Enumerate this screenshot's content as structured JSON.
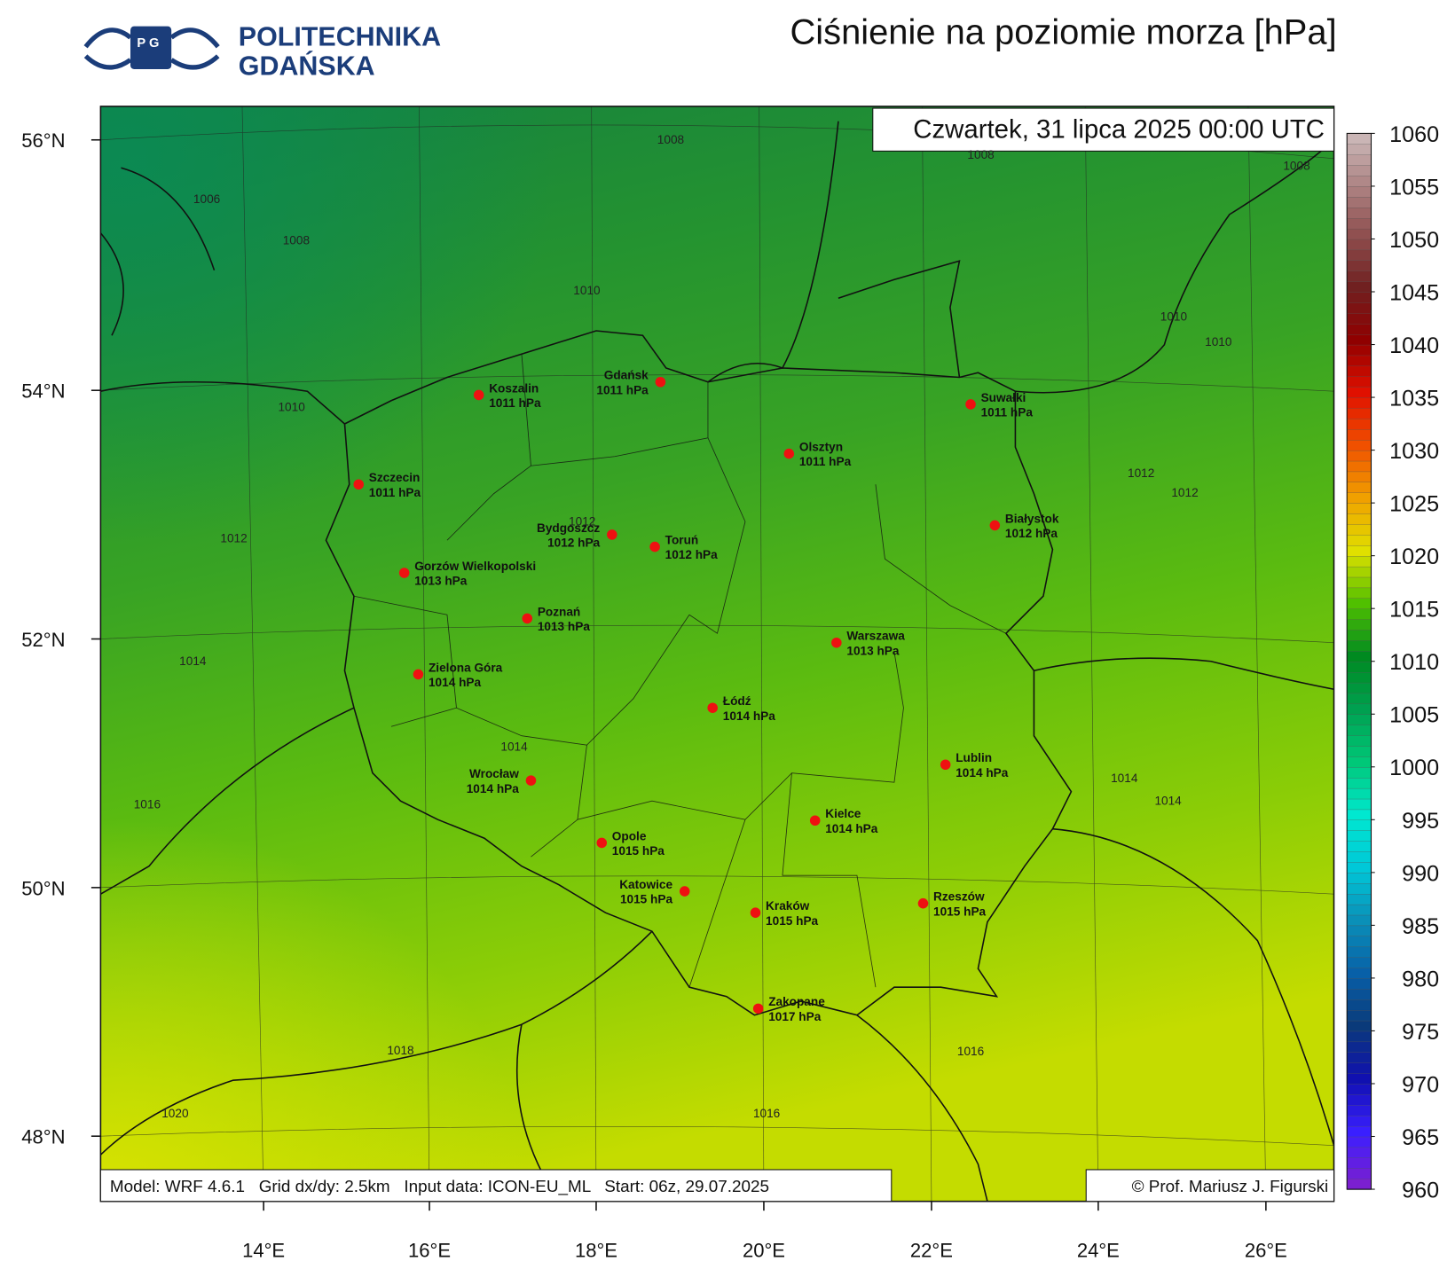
{
  "header": {
    "logo_line1": "POLITECHNIKA",
    "logo_line2": "GDAŃSKA",
    "title": "Ciśnienie na poziomie morza [hPa]"
  },
  "map": {
    "datetime": "Czwartek, 31 lipca 2025 00:00 UTC",
    "footer": "Model: WRF 4.6.1   Grid dx/dy: 2.5km   Input data: ICON-EU_ML   Start: 06z, 29.07.2025",
    "credit": "© Prof. Mariusz J. Figurski",
    "lat_labels": [
      "56°N",
      "54°N",
      "52°N",
      "50°N",
      "48°N"
    ],
    "lon_labels": [
      "14°E",
      "16°E",
      "18°E",
      "20°E",
      "22°E",
      "24°E",
      "26°E"
    ],
    "cities": [
      {
        "name": "Koszalin",
        "label": "1011 hPa"
      },
      {
        "name": "Gdańsk",
        "label": "1011 hPa"
      },
      {
        "name": "Suwałki",
        "label": "1011 hPa"
      },
      {
        "name": "Olsztyn",
        "label": "1011 hPa"
      },
      {
        "name": "Szczecin",
        "label": "1011 hPa"
      },
      {
        "name": "Bydgoszcz",
        "label": "1012 hPa"
      },
      {
        "name": "Toruń",
        "label": "1012 hPa"
      },
      {
        "name": "Białystok",
        "label": "1012 hPa"
      },
      {
        "name": "Gorzów Wielkopolski",
        "label": "1013 hPa"
      },
      {
        "name": "Poznań",
        "label": "1013 hPa"
      },
      {
        "name": "Warszawa",
        "label": "1013 hPa"
      },
      {
        "name": "Zielona Góra",
        "label": "1014 hPa"
      },
      {
        "name": "Łódź",
        "label": "1014 hPa"
      },
      {
        "name": "Lublin",
        "label": "1014 hPa"
      },
      {
        "name": "Wrocław",
        "label": "1014 hPa"
      },
      {
        "name": "Kielce",
        "label": "1014 hPa"
      },
      {
        "name": "Opole",
        "label": "1015 hPa"
      },
      {
        "name": "Katowice",
        "label": "1015 hPa"
      },
      {
        "name": "Kraków",
        "label": "1015 hPa"
      },
      {
        "name": "Rzeszów",
        "label": "1015 hPa"
      },
      {
        "name": "Zakopane",
        "label": "1017 hPa"
      }
    ],
    "contour_labels": [
      "1008",
      "1006",
      "1008",
      "1010",
      "1010",
      "1010",
      "1010",
      "1012",
      "1012",
      "1012",
      "1012",
      "1014",
      "1014",
      "1014",
      "1014",
      "1016",
      "1018",
      "1016",
      "1016",
      "1020",
      "1008",
      "1008"
    ]
  },
  "colorbar": {
    "lim": [
      960,
      1060
    ],
    "ticks": [
      960,
      965,
      970,
      975,
      980,
      985,
      990,
      995,
      1000,
      1005,
      1010,
      1015,
      1020,
      1025,
      1030,
      1035,
      1040,
      1045,
      1050,
      1055,
      1060
    ],
    "colors": [
      "#7b1fd0",
      "#3a1fff",
      "#1010b0",
      "#0a3a7a",
      "#0860a8",
      "#0a90b8",
      "#00c8d8",
      "#00e8d0",
      "#00c878",
      "#00a050",
      "#008a20",
      "#50c000",
      "#e0e000",
      "#f0a000",
      "#f05000",
      "#e01000",
      "#900000",
      "#702020",
      "#905050",
      "#b08888",
      "#d0c0c0"
    ]
  }
}
